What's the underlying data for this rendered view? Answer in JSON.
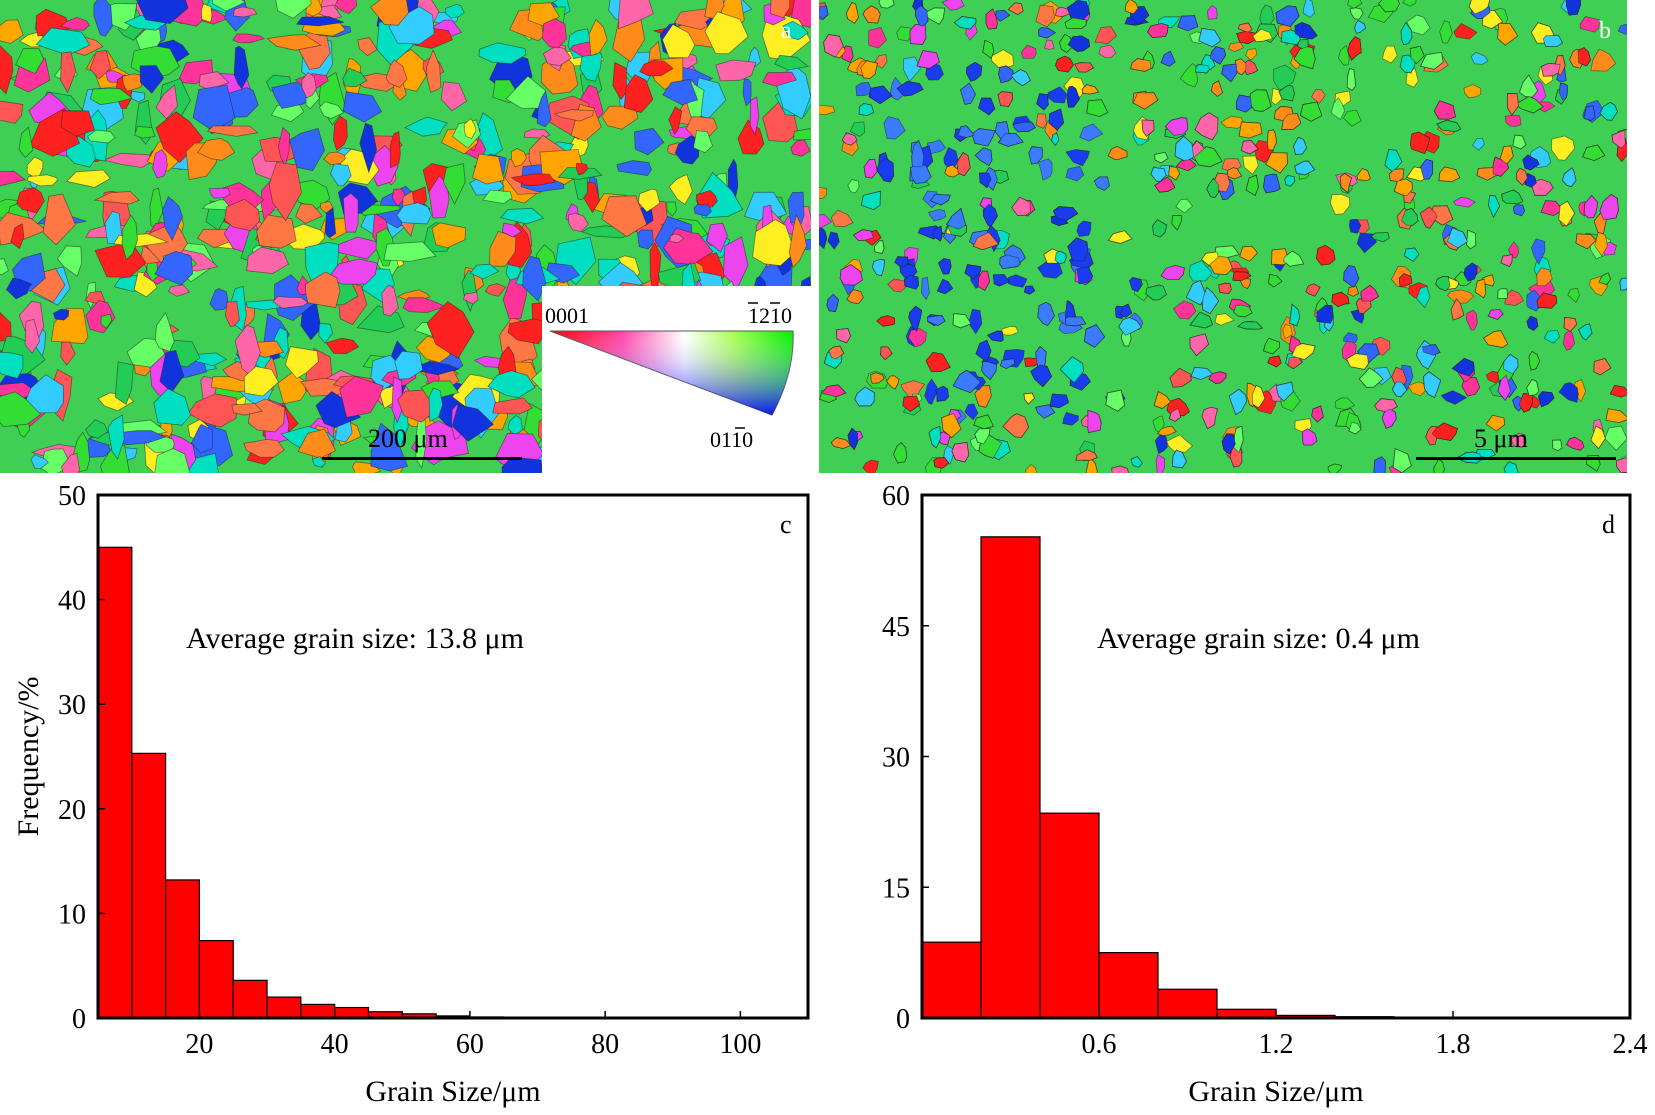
{
  "panels": {
    "a": {
      "label": "a",
      "scale_bar": "200 μm",
      "ipf_key": {
        "corner_0001": "0001",
        "corner_1210": "1210",
        "corner_0110": "0110"
      }
    },
    "b": {
      "label": "b",
      "scale_bar": "5 μm"
    }
  },
  "colors": {
    "bar_fill": "#ff0000",
    "bar_edge": "#000000",
    "ipf_red": "#ff0000",
    "ipf_green": "#00ff00",
    "ipf_blue": "#0000ff"
  },
  "chart_data": [
    {
      "type": "bar",
      "panel_label": "c",
      "annotation": "Average grain size: 13.8 μm",
      "xlabel": "Grain Size/μm",
      "ylabel": "Frequency/%",
      "xlim": [
        5,
        110
      ],
      "ylim": [
        0,
        50
      ],
      "xticks": [
        "20",
        "40",
        "60",
        "80",
        "100"
      ],
      "xtick_values": [
        20,
        40,
        60,
        80,
        100
      ],
      "yticks": [
        "0",
        "10",
        "20",
        "30",
        "40",
        "50"
      ],
      "ytick_values": [
        0,
        10,
        20,
        30,
        40,
        50
      ],
      "bin_edges": [
        5,
        10,
        15,
        20,
        25,
        30,
        35,
        40,
        45,
        50,
        55,
        60,
        65,
        70,
        75,
        80,
        85,
        90,
        95,
        100,
        105
      ],
      "values": [
        45.0,
        25.3,
        13.2,
        7.4,
        3.6,
        2.0,
        1.3,
        1.0,
        0.6,
        0.4,
        0.2,
        0.1,
        0.05,
        0.05,
        0.05,
        0.05,
        0.05,
        0.05,
        0.05,
        0.05
      ]
    },
    {
      "type": "bar",
      "panel_label": "d",
      "annotation": "Average grain size: 0.4 μm",
      "xlabel": "Grain Size/μm",
      "ylabel": "",
      "xlim": [
        0,
        2.4
      ],
      "ylim": [
        0,
        60
      ],
      "xticks": [
        "0.6",
        "1.2",
        "1.8",
        "2.4"
      ],
      "xtick_values": [
        0.6,
        1.2,
        1.8,
        2.4
      ],
      "yticks": [
        "0",
        "15",
        "30",
        "45",
        "60"
      ],
      "ytick_values": [
        0,
        15,
        30,
        45,
        60
      ],
      "bin_edges": [
        0,
        0.2,
        0.4,
        0.6,
        0.8,
        1.0,
        1.2,
        1.4,
        1.6,
        1.8,
        2.0,
        2.2,
        2.4
      ],
      "values": [
        8.7,
        55.2,
        23.5,
        7.5,
        3.3,
        1.0,
        0.3,
        0.15,
        0.1,
        0.1,
        0.05,
        0.1
      ]
    }
  ]
}
